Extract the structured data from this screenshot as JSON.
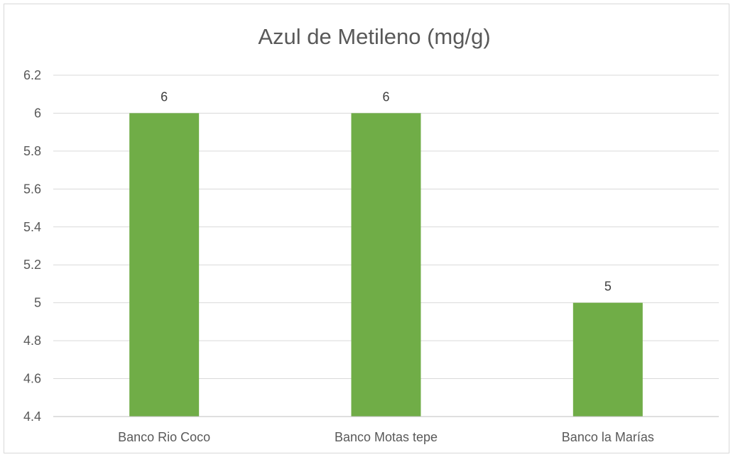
{
  "chart_data": {
    "type": "bar",
    "title": "Azul de Metileno (mg/g)",
    "xlabel": "",
    "ylabel": "",
    "categories": [
      "Banco Rio Coco",
      "Banco Motas tepe",
      "Banco la Marías"
    ],
    "values": [
      6,
      6,
      5
    ],
    "data_labels": [
      "6",
      "6",
      "5"
    ],
    "ylim": [
      4.4,
      6.2
    ],
    "yticks": [
      "4.4",
      "4.6",
      "4.8",
      "5",
      "5.2",
      "5.4",
      "5.6",
      "5.8",
      "6",
      "6.2"
    ],
    "grid": true,
    "legend": "none",
    "bar_color": "#70ad47"
  }
}
